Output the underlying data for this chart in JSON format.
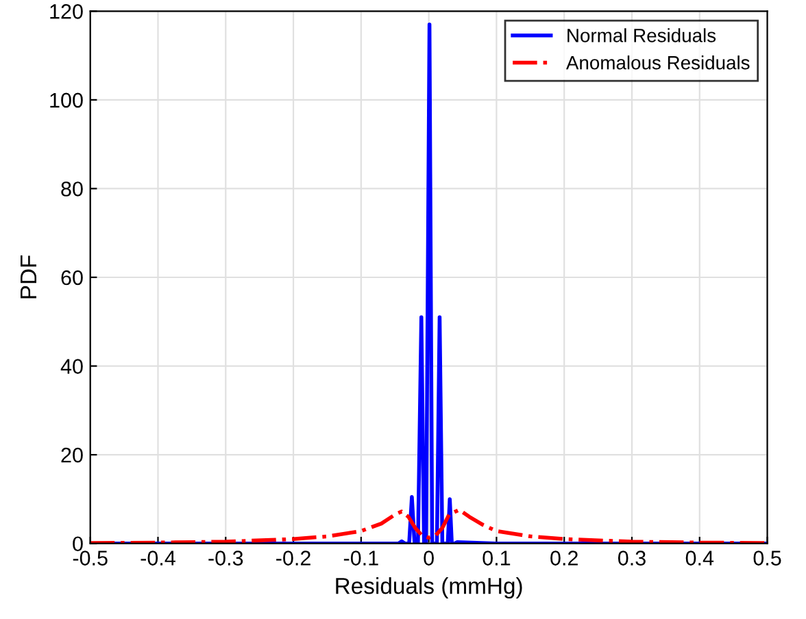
{
  "chart_data": {
    "type": "line",
    "xlabel": "Residuals (mmHg)",
    "ylabel": "PDF",
    "xlim": [
      -0.5,
      0.5
    ],
    "xticks": [
      -0.5,
      -0.4,
      -0.3,
      -0.2,
      -0.1,
      0,
      0.1,
      0.2,
      0.3,
      0.4,
      0.5
    ],
    "ylim": [
      0,
      120
    ],
    "yticks": [
      0,
      20,
      40,
      60,
      80,
      100,
      120
    ],
    "grid": true,
    "legend": "top right",
    "series": [
      {
        "name": "Normal Residuals",
        "color": "#0000ff",
        "line_style": "solid",
        "x": [
          -0.5,
          -0.1,
          -0.045,
          -0.04,
          -0.035,
          -0.029,
          -0.025,
          -0.021,
          -0.016,
          -0.011,
          -0.007,
          -0.004,
          0.001,
          0.005,
          0.009,
          0.012,
          0.016,
          0.02,
          0.024,
          0.028,
          0.031,
          0.034,
          0.038,
          0.042,
          0.1,
          0.5
        ],
        "values": [
          0,
          0,
          0,
          0.5,
          0,
          0,
          10.5,
          0,
          0,
          51,
          0,
          0,
          117,
          0,
          0,
          0,
          51,
          0,
          0,
          0,
          10,
          0,
          0,
          0.3,
          0,
          0
        ]
      },
      {
        "name": "Anomalous Residuals",
        "color": "#ff0000",
        "line_style": "dashdot",
        "x": [
          -0.5,
          -0.4,
          -0.3,
          -0.2,
          -0.15,
          -0.1,
          -0.07,
          -0.05,
          -0.04,
          -0.03,
          -0.02,
          -0.01,
          0,
          0.01,
          0.02,
          0.03,
          0.045,
          0.06,
          0.08,
          0.1,
          0.15,
          0.2,
          0.3,
          0.4,
          0.5
        ],
        "values": [
          0.1,
          0.2,
          0.4,
          1.0,
          1.6,
          2.8,
          4.5,
          6.5,
          7.2,
          6,
          3.5,
          1.8,
          1.3,
          1.8,
          3.5,
          6.5,
          7.6,
          6,
          4.2,
          2.8,
          1.6,
          1.0,
          0.4,
          0.2,
          0.1
        ]
      }
    ]
  }
}
